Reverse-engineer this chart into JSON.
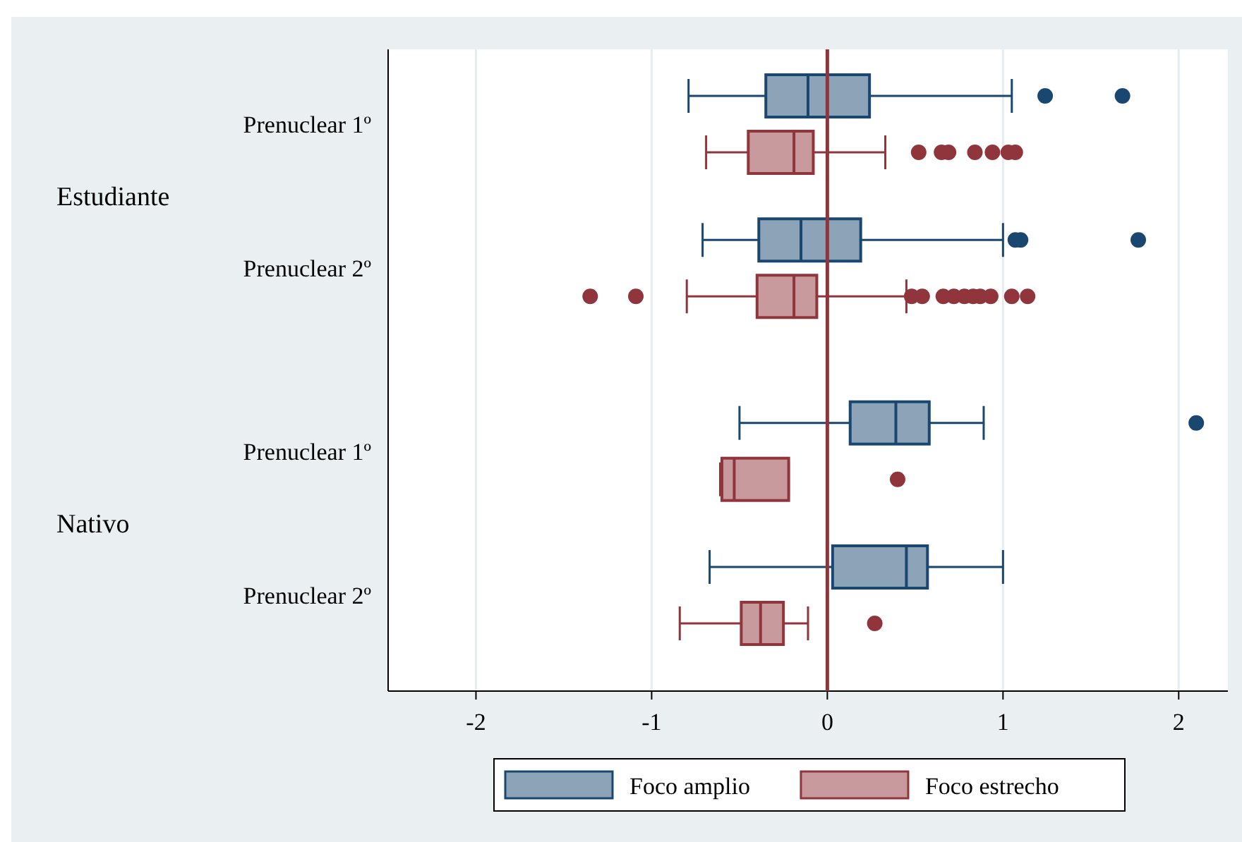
{
  "chart_data": {
    "type": "box",
    "orientation": "horizontal",
    "categories": [
      "Prenuclear 1º",
      "Prenuclear 2º",
      "Prenuclear 1º",
      "Prenuclear 2º"
    ],
    "annotations": [
      "Estudiante",
      "Nativo"
    ],
    "xlim": [
      -2.5,
      2.28
    ],
    "xticks": [
      -2,
      -1,
      0,
      1,
      2
    ],
    "grid": "x",
    "legend": "bottom",
    "ref_lines": [
      {
        "axis": "x",
        "value": 0,
        "color": "#90353b"
      }
    ],
    "series": [
      {
        "name": "Foco amplio",
        "color": "#1a476f",
        "boxes": [
          {
            "low": -0.79,
            "q1": -0.35,
            "median": -0.11,
            "q3": 0.24,
            "high": 1.05,
            "outliers": [
              1.24,
              1.68
            ]
          },
          {
            "low": -0.71,
            "q1": -0.39,
            "median": -0.15,
            "q3": 0.19,
            "high": 1.0,
            "outliers": [
              1.07,
              1.1,
              1.77
            ]
          },
          {
            "low": -0.5,
            "q1": 0.13,
            "median": 0.39,
            "q3": 0.58,
            "high": 0.89,
            "outliers": [
              2.1
            ]
          },
          {
            "low": -0.67,
            "q1": 0.03,
            "median": 0.45,
            "q3": 0.57,
            "high": 1.0
          }
        ]
      },
      {
        "name": "Foco estrecho",
        "color": "#90353b",
        "boxes": [
          {
            "low": -0.69,
            "q1": -0.45,
            "median": -0.19,
            "q3": -0.08,
            "high": 0.33,
            "outliers": [
              0.52,
              0.65,
              0.69,
              0.84,
              0.94,
              1.03,
              1.07
            ]
          },
          {
            "low": -0.8,
            "q1": -0.4,
            "median": -0.19,
            "q3": -0.06,
            "high": 0.45,
            "outliers": [
              -1.35,
              -1.09,
              0.48,
              0.54,
              0.66,
              0.72,
              0.78,
              0.83,
              0.87,
              0.93,
              1.05,
              1.14
            ]
          },
          {
            "low": -0.61,
            "q1": -0.6,
            "median": -0.53,
            "q3": -0.22,
            "high": -0.22,
            "outliers": [
              0.4
            ]
          },
          {
            "low": -0.84,
            "q1": -0.49,
            "median": -0.38,
            "q3": -0.25,
            "high": -0.11,
            "outliers": [
              0.27
            ]
          }
        ]
      }
    ]
  }
}
